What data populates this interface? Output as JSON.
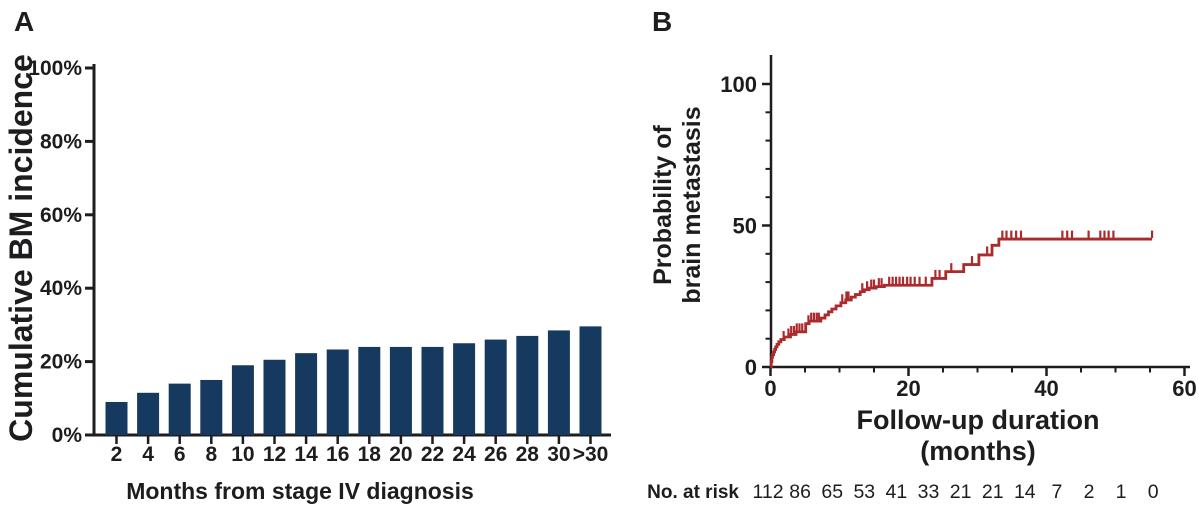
{
  "panels": {
    "a": "A",
    "b": "B"
  },
  "colors": {
    "bar": "#16395F",
    "curve": "#AB2A2C",
    "axis": "#1d1d1f",
    "text": "#1d1d1f",
    "background": "#ffffff"
  },
  "chart_data": [
    {
      "id": "cumulative-bm-incidence",
      "panel": "A",
      "type": "bar",
      "title": "",
      "xlabel": "Months from stage IV diagnosis",
      "ylabel": "Cumulative BM incidence",
      "categories": [
        "2",
        "4",
        "6",
        "8",
        "10",
        "12",
        "14",
        "16",
        "18",
        "20",
        "22",
        "24",
        "26",
        "28",
        "30",
        ">30"
      ],
      "values": [
        9,
        11.5,
        14,
        15,
        19,
        20.5,
        22.3,
        23.3,
        24,
        24,
        24,
        25,
        26,
        27,
        28.5,
        29.6
      ],
      "ylim": [
        0,
        100
      ],
      "yticks": [
        0,
        20,
        40,
        60,
        80,
        100
      ],
      "ytick_suffix": "%",
      "grid": false,
      "legend": "none"
    },
    {
      "id": "probability-of-brain-metastasis",
      "panel": "B",
      "type": "line",
      "subtype": "kaplan-meier-step",
      "title": "",
      "xlabel_lines": [
        "Follow-up duration",
        "(months)"
      ],
      "ylabel_lines": [
        "Probability of",
        "brain metastasis"
      ],
      "xlim": [
        0,
        60
      ],
      "ylim": [
        0,
        110
      ],
      "xticks_major": [
        0,
        20,
        40,
        60
      ],
      "xtick_minor_step": 5,
      "yticks_major": [
        0,
        50,
        100
      ],
      "ytick_minor_step": 10,
      "grid": false,
      "legend": "none",
      "series": [
        {
          "name": "Probability of brain metastasis",
          "color": "#AB2A2C",
          "steps": [
            [
              0,
              0
            ],
            [
              0.1,
              1.8
            ],
            [
              0.2,
              3.5
            ],
            [
              0.3,
              4.4
            ],
            [
              0.45,
              5.3
            ],
            [
              0.6,
              6.2
            ],
            [
              0.75,
              7.1
            ],
            [
              0.95,
              8.0
            ],
            [
              1.2,
              8.9
            ],
            [
              1.5,
              9.7
            ],
            [
              2.0,
              10.6
            ],
            [
              2.9,
              11.5
            ],
            [
              3.7,
              12.4
            ],
            [
              5.1,
              15.3
            ],
            [
              5.6,
              16.2
            ],
            [
              7.3,
              17.3
            ],
            [
              7.9,
              18.4
            ],
            [
              8.4,
              19.5
            ],
            [
              8.9,
              20.5
            ],
            [
              9.5,
              21.6
            ],
            [
              10.2,
              22.7
            ],
            [
              10.9,
              23.7
            ],
            [
              11.7,
              24.7
            ],
            [
              12.3,
              25.6
            ],
            [
              13.0,
              26.6
            ],
            [
              13.6,
              27.3
            ],
            [
              14.3,
              27.9
            ],
            [
              15.3,
              28.4
            ],
            [
              16.5,
              28.9
            ],
            [
              23.4,
              31.3
            ],
            [
              25.4,
              33.7
            ],
            [
              28.0,
              36.2
            ],
            [
              30.2,
              39.6
            ],
            [
              32.1,
              43.0
            ],
            [
              33.1,
              45.2
            ],
            [
              55.3,
              45.2
            ]
          ],
          "censor_marks": [
            [
              1.9,
              9.7
            ],
            [
              2.6,
              10.6
            ],
            [
              3.0,
              11.5
            ],
            [
              3.4,
              11.5
            ],
            [
              3.8,
              12.4
            ],
            [
              4.2,
              12.4
            ],
            [
              4.6,
              12.4
            ],
            [
              5.5,
              15.3
            ],
            [
              5.9,
              16.2
            ],
            [
              6.3,
              16.2
            ],
            [
              6.7,
              16.2
            ],
            [
              7.0,
              16.2
            ],
            [
              10.4,
              22.7
            ],
            [
              11.0,
              23.7
            ],
            [
              11.3,
              23.7
            ],
            [
              13.3,
              26.6
            ],
            [
              14.0,
              27.3
            ],
            [
              14.6,
              27.9
            ],
            [
              15.0,
              27.9
            ],
            [
              15.7,
              28.4
            ],
            [
              16.1,
              28.4
            ],
            [
              17.2,
              28.9
            ],
            [
              17.7,
              28.9
            ],
            [
              18.2,
              28.9
            ],
            [
              18.7,
              28.9
            ],
            [
              19.2,
              28.9
            ],
            [
              19.8,
              28.9
            ],
            [
              20.3,
              28.9
            ],
            [
              20.9,
              28.9
            ],
            [
              21.6,
              28.9
            ],
            [
              22.5,
              28.9
            ],
            [
              23.9,
              31.3
            ],
            [
              24.5,
              31.3
            ],
            [
              26.2,
              33.7
            ],
            [
              29.2,
              36.2
            ],
            [
              31.4,
              39.6
            ],
            [
              33.6,
              45.2
            ],
            [
              34.2,
              45.2
            ],
            [
              34.9,
              45.2
            ],
            [
              35.6,
              45.2
            ],
            [
              36.3,
              45.2
            ],
            [
              42.3,
              45.2
            ],
            [
              43.0,
              45.2
            ],
            [
              43.7,
              45.2
            ],
            [
              46.1,
              45.2
            ],
            [
              47.8,
              45.2
            ],
            [
              48.4,
              45.2
            ],
            [
              49.0,
              45.2
            ],
            [
              49.7,
              45.2
            ],
            [
              55.3,
              45.2
            ]
          ]
        }
      ]
    }
  ],
  "no_at_risk": {
    "label": "No. at risk",
    "values": [
      112,
      86,
      65,
      53,
      41,
      33,
      21,
      21,
      14,
      7,
      2,
      1,
      0
    ]
  }
}
